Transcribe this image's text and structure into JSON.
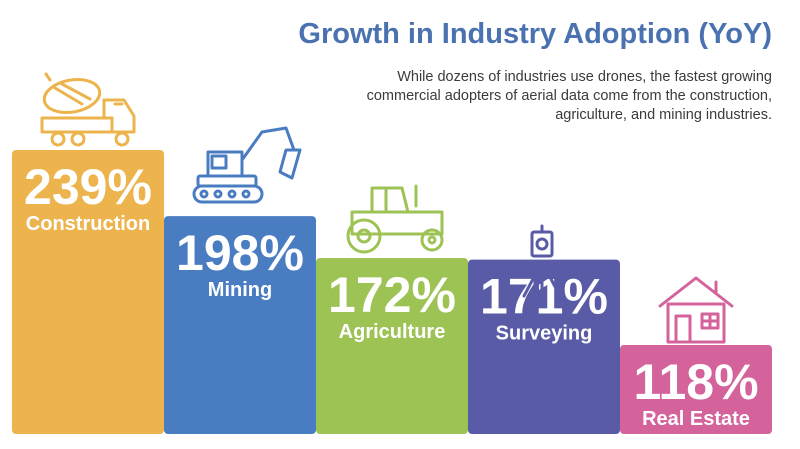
{
  "header": {
    "title": "Growth in Industry Adoption (YoY)",
    "subtitle": "While dozens of industries use drones, the fastest growing commercial adopters of aerial data come from the construction, agriculture, and mining industries."
  },
  "chart_data": {
    "type": "bar",
    "title": "Growth in Industry Adoption (YoY)",
    "categories": [
      "Construction",
      "Mining",
      "Agriculture",
      "Surveying",
      "Real Estate"
    ],
    "values": [
      239,
      198,
      172,
      171,
      118
    ],
    "labels": [
      "239%",
      "198%",
      "172%",
      "171%",
      "118%"
    ],
    "colors": [
      "#edb44e",
      "#4a7cc2",
      "#9ec355",
      "#5a5ba6",
      "#d4629b"
    ],
    "icons": [
      "cement-mixer-truck-icon",
      "excavator-icon",
      "tractor-icon",
      "surveying-tripod-icon",
      "house-icon"
    ],
    "ylim": [
      0,
      239
    ],
    "xlabel": "",
    "ylabel": "",
    "grid": false,
    "legend": "none"
  }
}
